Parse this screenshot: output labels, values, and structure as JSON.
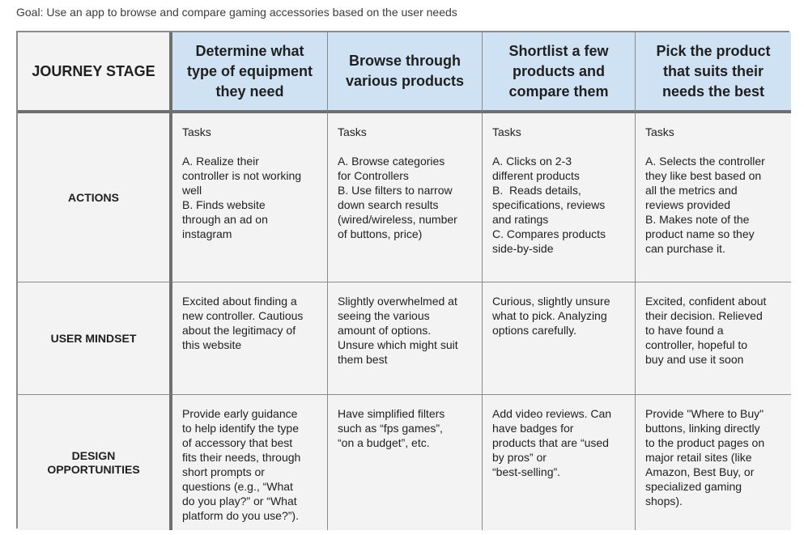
{
  "goal": "Goal: Use an app to browse and compare gaming accessories based on the user needs",
  "header": {
    "label": "JOURNEY STAGE",
    "stages": [
      "Determine what\ntype of equipment\nthey need",
      "Browse through\nvarious products",
      "Shortlist a few\nproducts and\ncompare them",
      "Pick the product\nthat suits their\nneeds the best"
    ]
  },
  "rows": [
    {
      "label": "ACTIONS",
      "cells": [
        "Tasks\n\nA. Realize their\ncontroller is not working\nwell\nB. Finds website\nthrough an ad on\ninstagram",
        "Tasks\n\nA. Browse categories\nfor Controllers\nB. Use filters to narrow\ndown search results\n(wired/wireless, number\nof buttons, price)",
        "Tasks\n\nA. Clicks on 2-3\ndifferent products\nB.  Reads details,\nspecifications, reviews\nand ratings\nC. Compares products\nside-by-side",
        "Tasks\n\nA. Selects the controller\nthey like best based on\nall the metrics and\nreviews provided\nB. Makes note of the\nproduct name so they\ncan purchase it."
      ]
    },
    {
      "label": "USER MINDSET",
      "cells": [
        "Excited about finding a\nnew controller. Cautious\nabout the legitimacy of\nthis website",
        "Slightly overwhelmed at\nseeing the various\namount of options.\nUnsure which might suit\nthem best",
        "Curious, slightly unsure\nwhat to pick. Analyzing\noptions carefully.",
        "Excited, confident about\ntheir decision. Relieved\nto have found a\ncontroller, hopeful to\nbuy and use it soon"
      ]
    },
    {
      "label": "DESIGN\nOPPORTUNITIES",
      "cells": [
        "Provide early guidance\nto help identify the type\nof accessory that best\nfits their needs, through\nshort prompts or\nquestions (e.g., “What\ndo you play?” or “What\nplatform do you use?”).",
        "Have simplified filters\nsuch as “fps games”,\n“on a budget”, etc.",
        "Add video reviews. Can\nhave badges for\nproducts that are “used\nby pros” or\n“best-selling”.",
        "Provide \"Where to Buy\"\nbuttons, linking directly\nto the product pages on\nmajor retail sites (like\nAmazon, Best Buy, or\nspecialized gaming\nshops)."
      ]
    }
  ]
}
